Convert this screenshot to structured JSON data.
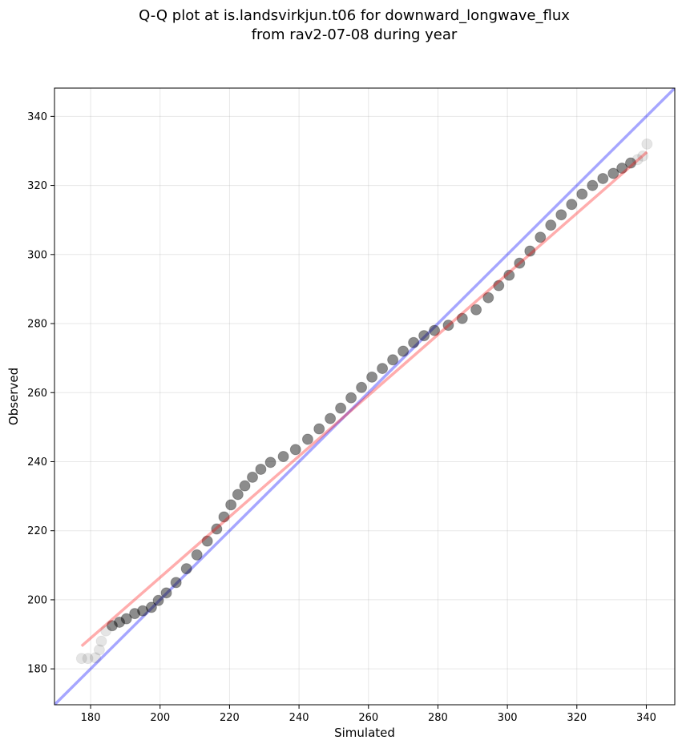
{
  "chart_data": {
    "type": "scatter",
    "title_line1": "Q-Q plot at is.landsvirkjun.t06 for downward_longwave_flux",
    "title_line2": "from rav2-07-08 during year",
    "xlabel": "Simulated",
    "ylabel": "Observed",
    "xlim": [
      169.6,
      348.2
    ],
    "ylim": [
      169.6,
      348.2
    ],
    "xticks": [
      180,
      200,
      220,
      240,
      260,
      280,
      300,
      320,
      340
    ],
    "yticks": [
      180,
      200,
      220,
      240,
      260,
      280,
      300,
      320,
      340
    ],
    "grid": true,
    "colors": {
      "points": "#000000",
      "identity_line": "#0000ff",
      "fit_line": "#ff0000"
    },
    "identity_line": {
      "from": [
        169.6,
        169.6
      ],
      "to": [
        348.2,
        348.2
      ]
    },
    "fit_line": {
      "from": [
        177.4,
        186.6
      ],
      "to": [
        340.2,
        329.7
      ]
    },
    "quantiles": {
      "simulated": [
        177.4,
        179.2,
        181.4,
        182.5,
        183.1,
        184.4,
        186.2,
        188.3,
        190.3,
        192.7,
        195.0,
        197.5,
        199.5,
        201.8,
        204.6,
        207.6,
        210.6,
        213.6,
        216.3,
        218.4,
        220.4,
        222.4,
        224.4,
        226.6,
        229.0,
        231.8,
        235.5,
        239.0,
        242.5,
        245.8,
        249.0,
        252.0,
        255.0,
        258.0,
        261.0,
        264.0,
        267.0,
        270.0,
        273.0,
        276.0,
        279.0,
        283.0,
        287.0,
        291.0,
        294.5,
        297.5,
        300.5,
        303.5,
        306.5,
        309.5,
        312.5,
        315.5,
        318.5,
        321.5,
        324.5,
        327.5,
        330.5,
        333.0,
        335.5,
        337.5,
        339.0,
        340.2
      ],
      "observed": [
        183.0,
        183.0,
        183.2,
        185.5,
        188.0,
        191.0,
        192.5,
        193.5,
        194.5,
        196.0,
        196.8,
        197.8,
        199.8,
        202.0,
        205.0,
        209.0,
        213.0,
        217.0,
        220.5,
        224.0,
        227.5,
        230.5,
        233.0,
        235.5,
        237.8,
        239.8,
        241.5,
        243.5,
        246.5,
        249.5,
        252.5,
        255.5,
        258.5,
        261.5,
        264.5,
        267.0,
        269.5,
        272.0,
        274.5,
        276.5,
        278.0,
        279.5,
        281.5,
        284.0,
        287.5,
        291.0,
        294.0,
        297.5,
        301.0,
        305.0,
        308.5,
        311.5,
        314.5,
        317.5,
        320.0,
        322.0,
        323.5,
        325.0,
        326.5,
        327.5,
        328.5,
        332.0
      ]
    }
  }
}
